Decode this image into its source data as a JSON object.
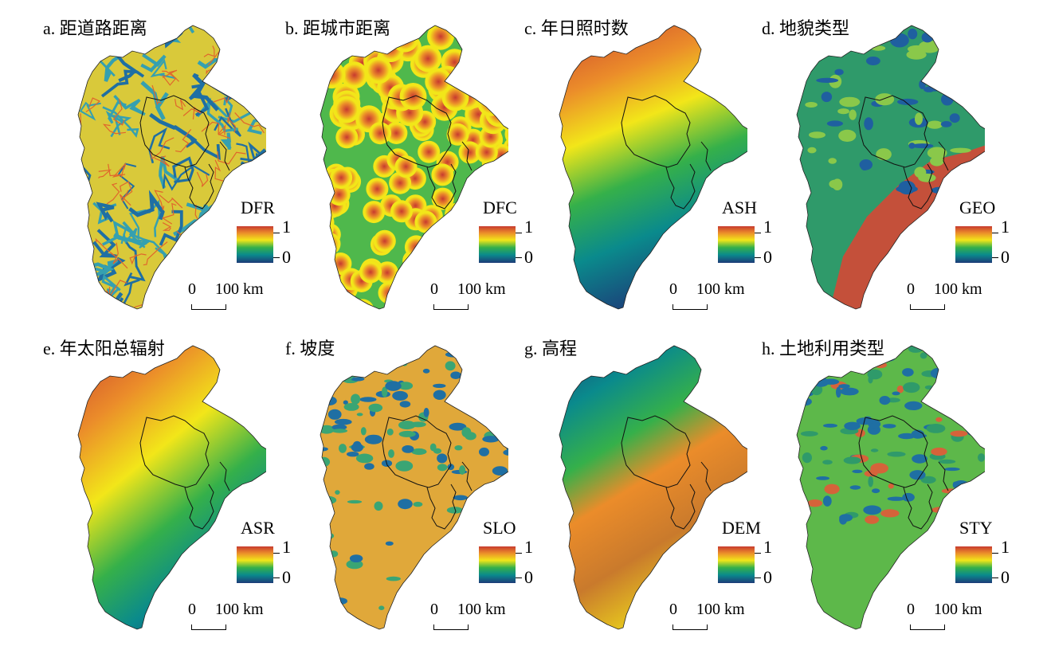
{
  "panels": [
    {
      "title": "a. 距道路距离",
      "layer": "DFR",
      "scheme": "roads"
    },
    {
      "title": "b. 距城市距离",
      "layer": "DFC",
      "scheme": "cities"
    },
    {
      "title": "c. 年日照时数",
      "layer": "ASH",
      "scheme": "sunshine"
    },
    {
      "title": "d. 地貌类型",
      "layer": "GEO",
      "scheme": "geomorph"
    },
    {
      "title": "e. 年太阳总辐射",
      "layer": "ASR",
      "scheme": "radiation"
    },
    {
      "title": "f. 坡度",
      "layer": "SLO",
      "scheme": "slope"
    },
    {
      "title": "g. 高程",
      "layer": "DEM",
      "scheme": "elevation"
    },
    {
      "title": "h. 土地利用类型",
      "layer": "STY",
      "scheme": "landuse"
    }
  ],
  "legend": {
    "max": "1",
    "min": "0",
    "colors": [
      "#1d3b78",
      "#0a8a8c",
      "#35b04a",
      "#f2e619",
      "#eb8c2a",
      "#c73a2f"
    ]
  },
  "scale": {
    "zero": "0",
    "distance": "100 km"
  }
}
